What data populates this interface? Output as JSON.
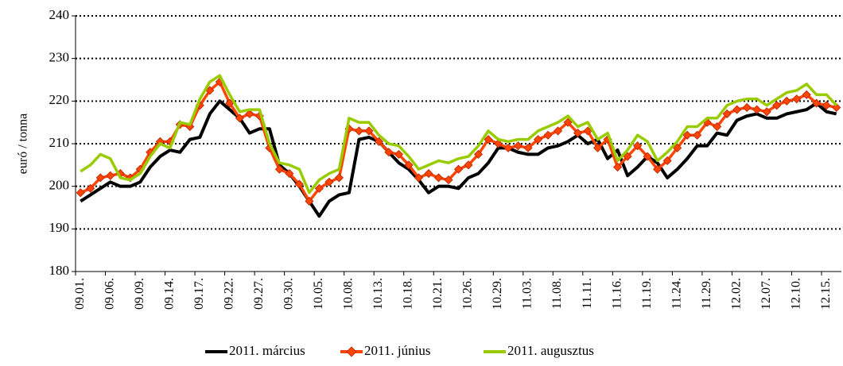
{
  "chart_data": {
    "type": "line",
    "y_label": "euró / tonna",
    "categories": [
      "09.01.",
      null,
      null,
      "09.06.",
      null,
      null,
      "09.09.",
      null,
      null,
      "09.14.",
      null,
      null,
      "09.17.",
      null,
      null,
      "09.22.",
      null,
      null,
      "09.27.",
      null,
      null,
      "09.30.",
      null,
      null,
      "10.05.",
      null,
      null,
      "10.08.",
      null,
      null,
      "10.13.",
      null,
      null,
      "10.18.",
      null,
      null,
      "10.21.",
      null,
      null,
      "10.26.",
      null,
      null,
      "10.29.",
      null,
      null,
      "11.03.",
      null,
      null,
      "11.08.",
      null,
      null,
      "11.11.",
      null,
      null,
      "11.16.",
      null,
      null,
      "11.19.",
      null,
      null,
      "11.24.",
      null,
      null,
      "11.29.",
      null,
      null,
      "12.02.",
      null,
      null,
      "12.07.",
      null,
      null,
      "12.10.",
      null,
      null,
      "12.15.",
      null
    ],
    "series": [
      {
        "name": "2011. március",
        "color": "#000000",
        "marker": "none",
        "values": [
          196.5,
          198,
          199.5,
          201,
          200,
          200,
          201,
          204.5,
          207,
          208.5,
          208,
          211,
          211.5,
          217,
          220,
          218,
          216,
          212.5,
          213.5,
          213.5,
          205,
          203,
          200,
          196.5,
          193,
          196.5,
          198,
          198.5,
          211,
          211.5,
          210.5,
          208,
          205.5,
          204,
          201.5,
          198.5,
          200,
          200,
          199.5,
          202,
          203,
          205.5,
          209,
          209,
          208,
          207.5,
          207.5,
          209,
          209.5,
          210.5,
          212,
          210,
          211,
          206.5,
          208.5,
          202.5,
          204.5,
          207,
          205.5,
          202,
          204,
          206.5,
          209.5,
          209.5,
          212.5,
          212,
          215.5,
          216.5,
          217,
          216,
          216,
          217,
          217.5,
          218,
          219.5,
          217.5,
          217
        ]
      },
      {
        "name": "2011. június",
        "color": "#ff4500",
        "marker": "diamond",
        "values": [
          198.5,
          199.5,
          202,
          202.5,
          203,
          202,
          204,
          208,
          210.5,
          210.5,
          214.5,
          214,
          219,
          222.5,
          224.5,
          219.5,
          216,
          217,
          216.5,
          209,
          204,
          203,
          200.5,
          196.5,
          199.5,
          201,
          202,
          213.5,
          213,
          213,
          210.5,
          208,
          207.5,
          205,
          202,
          203,
          202,
          201.5,
          204,
          205,
          207.5,
          211,
          210,
          209,
          209.5,
          209,
          211,
          212,
          213,
          215,
          212.5,
          213,
          209,
          211,
          204.5,
          207,
          209.5,
          207,
          204,
          206,
          209,
          212,
          212,
          215,
          214,
          217,
          218,
          218.5,
          218,
          217.5,
          219,
          220,
          220.5,
          221.5,
          219.5,
          219,
          218.5
        ]
      },
      {
        "name": "2011. augusztus",
        "color": "#99cc00",
        "marker": "none",
        "values": [
          203.5,
          205,
          207.5,
          206.5,
          202,
          201.5,
          203,
          207,
          210,
          209,
          215,
          214.5,
          220.5,
          224.5,
          226,
          221.5,
          217.5,
          218,
          218,
          210,
          205.5,
          205,
          204,
          198.5,
          201.5,
          203,
          204,
          216,
          215,
          215,
          212,
          210,
          209.5,
          207,
          204,
          205,
          206,
          205.5,
          206.5,
          207,
          209.5,
          213,
          211,
          210.5,
          211,
          211,
          213,
          214,
          215,
          216.5,
          214,
          215,
          211,
          212.5,
          206,
          208.5,
          212,
          210.5,
          206,
          208,
          210.5,
          214,
          214,
          216,
          216,
          219,
          220,
          220.5,
          220.5,
          219,
          220.5,
          222,
          222.5,
          224,
          221.5,
          221.5,
          219
        ]
      }
    ],
    "ylim": [
      180,
      240
    ],
    "yticks": [
      180,
      190,
      200,
      210,
      220,
      230,
      240
    ],
    "grid": true,
    "legend": "bottom"
  }
}
